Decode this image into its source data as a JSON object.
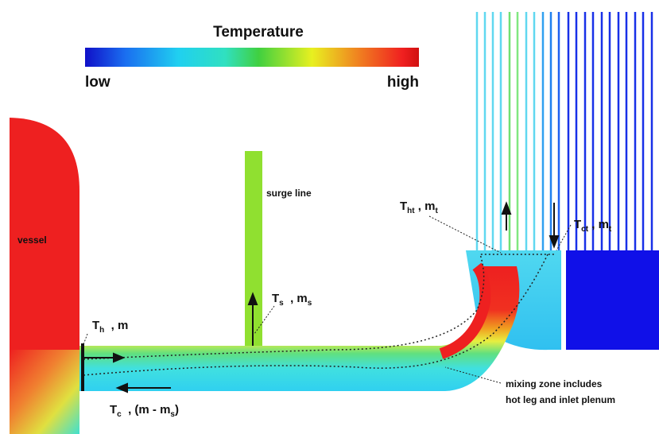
{
  "colorbar": {
    "title": "Temperature",
    "low": "low",
    "high": "high"
  },
  "labels": {
    "vessel": "vessel",
    "surge_line": "surge line",
    "hot_inlet": [
      {
        "text": "T"
      },
      {
        "sub": "h"
      },
      {
        "text": "  , m"
      }
    ],
    "surge": [
      {
        "text": "T"
      },
      {
        "sub": "s"
      },
      {
        "text": "  , m"
      },
      {
        "sub": "s"
      }
    ],
    "hot_tube": [
      {
        "text": "T"
      },
      {
        "sub": "ht"
      },
      {
        "text": " , m"
      },
      {
        "sub": "t"
      }
    ],
    "cold_tube": [
      {
        "text": "T"
      },
      {
        "sub": "ct"
      },
      {
        "text": " , m"
      },
      {
        "sub": "t"
      }
    ],
    "cold_return": [
      {
        "text": "T"
      },
      {
        "sub": "c"
      },
      {
        "text": "  , (m - m"
      },
      {
        "sub": "s"
      },
      {
        "text": ")"
      }
    ],
    "mixing_zone": [
      "mixing zone includes",
      "hot leg and inlet plenum"
    ]
  }
}
